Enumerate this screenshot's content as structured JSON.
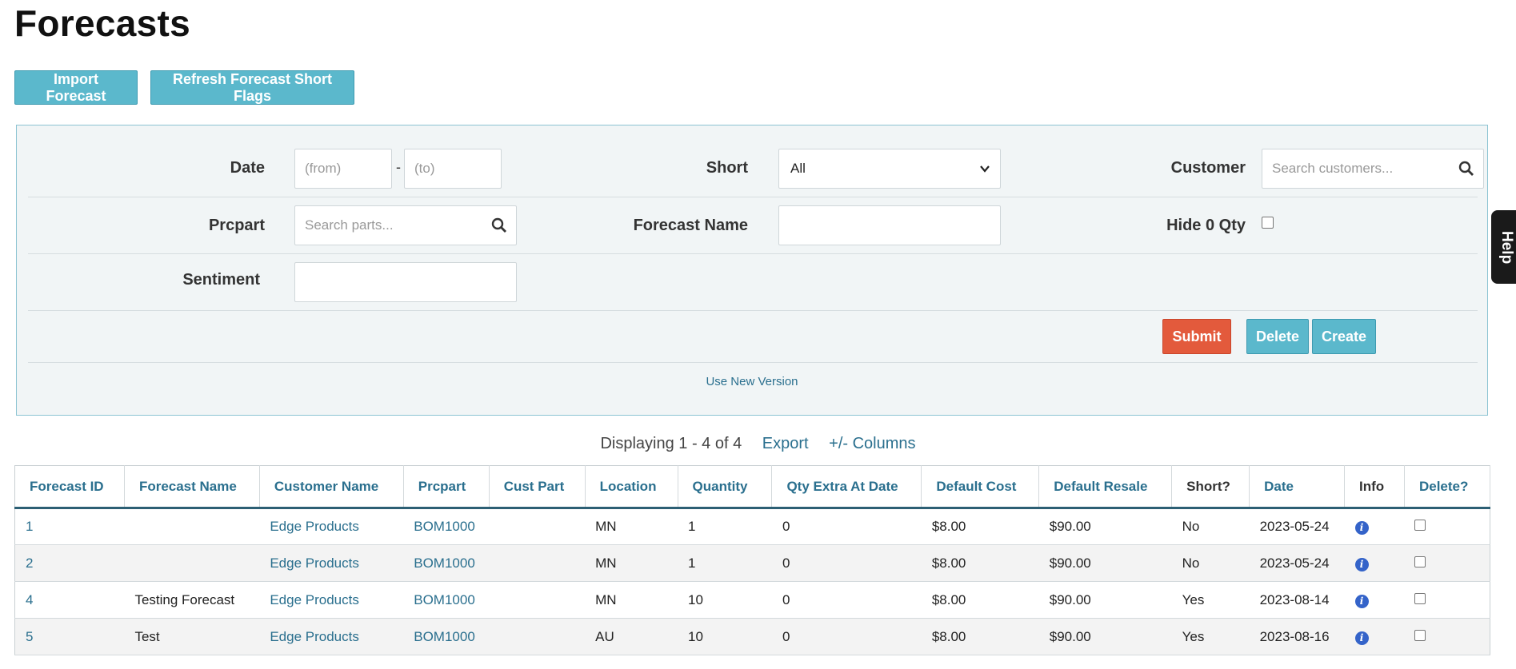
{
  "page": {
    "title": "Forecasts"
  },
  "top_buttons": {
    "import": "Import Forecast",
    "refresh": "Refresh Forecast Short Flags"
  },
  "filters": {
    "date": {
      "label": "Date",
      "from_placeholder": "(from)",
      "to_placeholder": "(to)",
      "separator": "-"
    },
    "short": {
      "label": "Short",
      "selected": "All"
    },
    "customer": {
      "label": "Customer",
      "placeholder": "Search customers..."
    },
    "prcpart": {
      "label": "Prcpart",
      "placeholder": "Search parts..."
    },
    "forecast_name": {
      "label": "Forecast Name",
      "value": ""
    },
    "hide_zero_qty": {
      "label": "Hide 0 Qty",
      "checked": false
    },
    "sentiment": {
      "label": "Sentiment",
      "value": ""
    },
    "actions": {
      "submit": "Submit",
      "delete": "Delete",
      "create": "Create"
    },
    "new_version_link": "Use New Version"
  },
  "help_tab": "Help",
  "results": {
    "displaying": "Displaying 1 - 4 of 4",
    "export": "Export",
    "columns": "+/- Columns"
  },
  "table": {
    "headers": [
      "Forecast ID",
      "Forecast Name",
      "Customer Name",
      "Prcpart",
      "Cust Part",
      "Location",
      "Quantity",
      "Qty Extra At Date",
      "Default Cost",
      "Default Resale",
      "Short?",
      "Date",
      "Info",
      "Delete?"
    ],
    "rows": [
      {
        "id": "1",
        "name": "",
        "customer": "Edge Products",
        "prcpart": "BOM1000",
        "cust_part": "",
        "location": "MN",
        "quantity": "1",
        "qty_extra": "0",
        "cost": "$8.00",
        "resale": "$90.00",
        "short": "No",
        "date": "2023-05-24"
      },
      {
        "id": "2",
        "name": "",
        "customer": "Edge Products",
        "prcpart": "BOM1000",
        "cust_part": "",
        "location": "MN",
        "quantity": "1",
        "qty_extra": "0",
        "cost": "$8.00",
        "resale": "$90.00",
        "short": "No",
        "date": "2023-05-24"
      },
      {
        "id": "4",
        "name": "Testing Forecast",
        "customer": "Edge Products",
        "prcpart": "BOM1000",
        "cust_part": "",
        "location": "MN",
        "quantity": "10",
        "qty_extra": "0",
        "cost": "$8.00",
        "resale": "$90.00",
        "short": "Yes",
        "date": "2023-08-14"
      },
      {
        "id": "5",
        "name": "Test",
        "customer": "Edge Products",
        "prcpart": "BOM1000",
        "cust_part": "",
        "location": "AU",
        "quantity": "10",
        "qty_extra": "0",
        "cost": "$8.00",
        "resale": "$90.00",
        "short": "Yes",
        "date": "2023-08-16"
      }
    ]
  },
  "icons": {
    "search": "magnifier-icon",
    "info": "info-icon",
    "chevron": "chevron-down-icon"
  },
  "colors": {
    "accent": "#5bb8cc",
    "submit": "#e35a3c",
    "link": "#2a6f8e",
    "header_rule": "#2c5f74"
  }
}
